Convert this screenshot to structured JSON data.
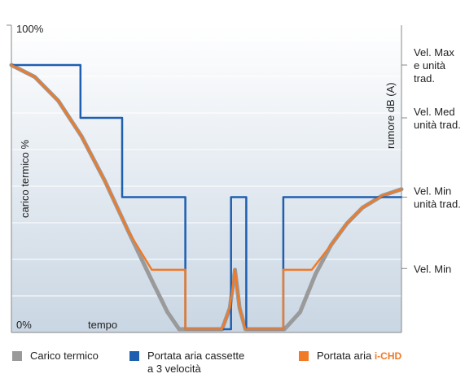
{
  "chart_data": {
    "type": "line",
    "title": "",
    "ylabel_left": "carico termico %",
    "ylabel_right": "rumore dB (A)",
    "xlabel": "tempo",
    "y_ticks_left": {
      "top": "100%",
      "bottom": "0%"
    },
    "y_ticks_right": [
      {
        "label": "Vel. Max\ne unità\ntrad.",
        "value": 100
      },
      {
        "label": "Vel. Med\nunità trad.",
        "value": 80
      },
      {
        "label": "Vel. Min\nunità trad.",
        "value": 50
      },
      {
        "label": "Vel. Min",
        "value": 23
      }
    ],
    "xlim": [
      0,
      100
    ],
    "ylim": [
      0,
      100
    ],
    "grid": true,
    "series": [
      {
        "name": "Carico termico",
        "color": "#9a9a9a",
        "x": [
          0,
          6,
          12,
          18,
          24,
          30,
          36,
          40,
          43,
          46,
          50,
          52,
          54,
          56,
          57.3,
          58.5,
          60,
          62,
          66,
          70,
          74,
          78,
          82,
          86,
          90,
          95,
          100
        ],
        "y": [
          100,
          95.5,
          86.5,
          73,
          56,
          37,
          18.5,
          6.5,
          0,
          0,
          0,
          0,
          0,
          8,
          22.5,
          8,
          0,
          0,
          0,
          0,
          6.5,
          21,
          32,
          40,
          46,
          50.5,
          53
        ]
      },
      {
        "name": "Portata aria cassette a 3 velocità",
        "color": "#1f5fb0",
        "x": [
          0,
          17.7,
          17.7,
          28.4,
          28.4,
          44.6,
          44.6,
          56.3,
          56.3,
          60.2,
          60.2,
          69.7,
          69.7,
          100
        ],
        "y": [
          100,
          100,
          80,
          80,
          50,
          50,
          0,
          0,
          50,
          50,
          0,
          0,
          50,
          50
        ]
      },
      {
        "name": "Portata aria i-CHD",
        "color": "#f07a26",
        "x": [
          0,
          6,
          12,
          18,
          24,
          30,
          36,
          36.5,
          44.6,
          44.6,
          50,
          54,
          56,
          57.3,
          58.5,
          60,
          62,
          69.7,
          69.7,
          77,
          82,
          86,
          90,
          95,
          100
        ],
        "y": [
          100,
          95.5,
          86.5,
          73,
          56,
          37,
          22.5,
          22.5,
          22.5,
          0,
          0,
          0,
          8,
          22.5,
          8,
          0,
          0,
          0,
          22.5,
          22.5,
          32,
          40,
          46,
          50.5,
          53
        ]
      }
    ]
  },
  "legend": [
    {
      "label": "Carico termico",
      "color": "#9a9a9a"
    },
    {
      "label_line1": "Portata aria cassette",
      "label_line2": "a 3 velocità",
      "color": "#1f5fb0"
    },
    {
      "label": "Portata aria ",
      "brand": "i-CHD",
      "color": "#f07a26"
    }
  ]
}
